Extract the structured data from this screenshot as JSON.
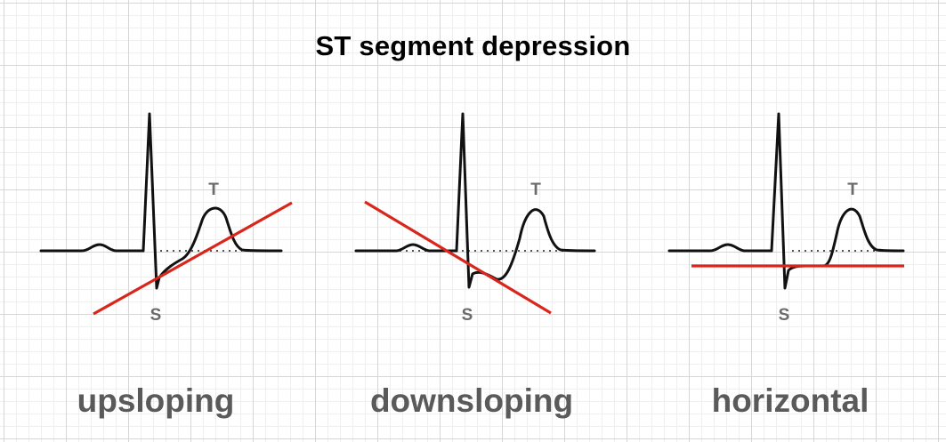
{
  "title": "ST segment depression",
  "panels": [
    {
      "caption": "upsloping",
      "t_label": "T",
      "s_label": "S"
    },
    {
      "caption": "downsloping",
      "t_label": "T",
      "s_label": "S"
    },
    {
      "caption": "horizontal",
      "t_label": "T",
      "s_label": "S"
    }
  ],
  "colors": {
    "st_line": "#d9261c",
    "waveform": "#111111",
    "label": "#6b6b6b",
    "caption": "#5a5a5a",
    "grid": "#d6d6d6"
  }
}
